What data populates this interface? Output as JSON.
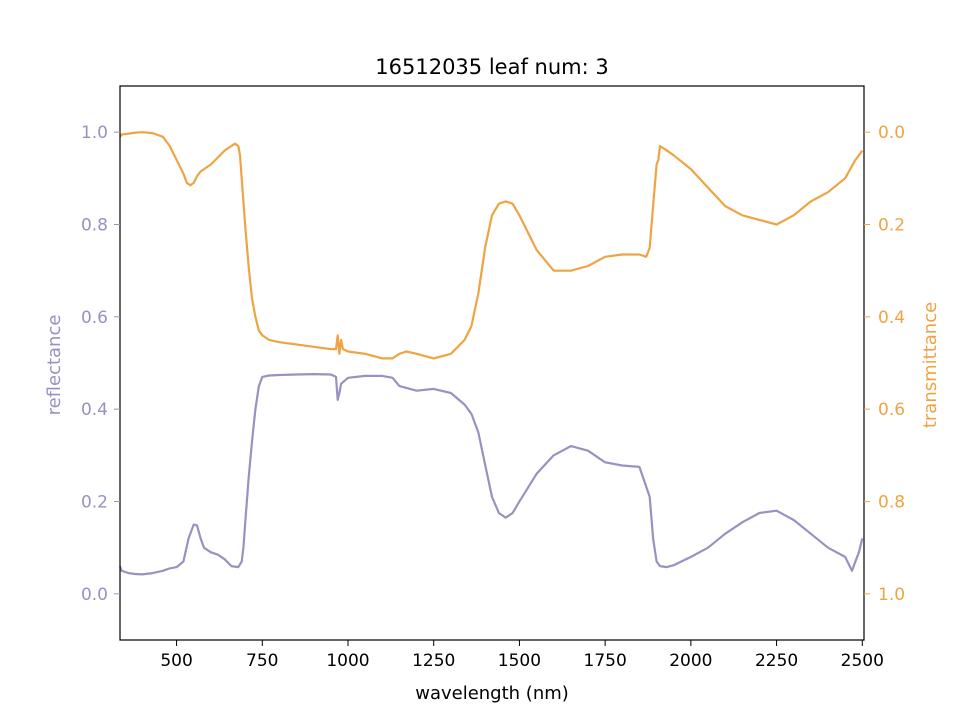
{
  "chart_data": {
    "type": "line",
    "title": "16512035 leaf num: 3",
    "xlabel": "wavelength (nm)",
    "ylabel_left": "reflectance",
    "ylabel_right": "transmittance",
    "xlim": [
      335,
      2505
    ],
    "ylim_left": [
      -0.1,
      1.1
    ],
    "ylim_right": [
      1.1,
      -0.1
    ],
    "x_ticks": [
      500,
      750,
      1000,
      1250,
      1500,
      1750,
      2000,
      2250,
      2500
    ],
    "y_ticks_left": [
      0.0,
      0.2,
      0.4,
      0.6,
      0.8,
      1.0
    ],
    "y_ticks_right": [
      0.0,
      0.2,
      0.4,
      0.6,
      0.8,
      1.0
    ],
    "x_tick_labels": [
      "500",
      "750",
      "1000",
      "1250",
      "1500",
      "1750",
      "2000",
      "2250",
      "2500"
    ],
    "y_tick_labels_left": [
      "0.0",
      "0.2",
      "0.4",
      "0.6",
      "0.8",
      "1.0"
    ],
    "y_tick_labels_right": [
      "0.0",
      "0.2",
      "0.4",
      "0.6",
      "0.8",
      "1.0"
    ],
    "grid": false,
    "colors": {
      "reflectance": "#9991c2",
      "transmittance": "#eea444",
      "axes": "#000000"
    },
    "series": [
      {
        "axis": "left",
        "color": "#9991c2",
        "x": [
          335,
          340,
          360,
          380,
          400,
          430,
          460,
          480,
          500,
          520,
          535,
          550,
          560,
          570,
          580,
          600,
          620,
          640,
          660,
          680,
          690,
          695,
          700,
          710,
          720,
          730,
          740,
          750,
          770,
          800,
          850,
          900,
          950,
          965,
          970,
          975,
          980,
          1000,
          1050,
          1100,
          1130,
          1150,
          1200,
          1250,
          1300,
          1340,
          1360,
          1380,
          1400,
          1420,
          1440,
          1460,
          1480,
          1500,
          1550,
          1600,
          1650,
          1700,
          1750,
          1800,
          1850,
          1880,
          1890,
          1900,
          1910,
          1930,
          1950,
          2000,
          2050,
          2100,
          2150,
          2200,
          2250,
          2300,
          2350,
          2400,
          2450,
          2470,
          2480,
          2490,
          2500
        ],
        "y": [
          0.06,
          0.05,
          0.045,
          0.043,
          0.042,
          0.045,
          0.05,
          0.055,
          0.058,
          0.07,
          0.12,
          0.15,
          0.148,
          0.12,
          0.1,
          0.09,
          0.085,
          0.075,
          0.06,
          0.058,
          0.07,
          0.1,
          0.15,
          0.25,
          0.33,
          0.4,
          0.45,
          0.47,
          0.473,
          0.474,
          0.475,
          0.476,
          0.475,
          0.47,
          0.42,
          0.435,
          0.455,
          0.468,
          0.472,
          0.472,
          0.468,
          0.45,
          0.44,
          0.444,
          0.435,
          0.41,
          0.39,
          0.35,
          0.28,
          0.21,
          0.175,
          0.165,
          0.175,
          0.2,
          0.26,
          0.3,
          0.32,
          0.31,
          0.285,
          0.278,
          0.275,
          0.21,
          0.12,
          0.07,
          0.06,
          0.058,
          0.062,
          0.08,
          0.1,
          0.13,
          0.155,
          0.175,
          0.18,
          0.16,
          0.13,
          0.1,
          0.08,
          0.05,
          0.07,
          0.09,
          0.12
        ]
      },
      {
        "axis": "right",
        "color": "#eea444",
        "x": [
          335,
          340,
          360,
          380,
          400,
          430,
          460,
          480,
          500,
          520,
          530,
          540,
          550,
          560,
          570,
          580,
          600,
          620,
          640,
          660,
          670,
          680,
          685,
          690,
          700,
          710,
          720,
          730,
          740,
          750,
          770,
          800,
          850,
          900,
          950,
          965,
          970,
          975,
          980,
          985,
          1000,
          1050,
          1100,
          1130,
          1150,
          1170,
          1200,
          1250,
          1300,
          1340,
          1360,
          1380,
          1400,
          1420,
          1440,
          1460,
          1480,
          1500,
          1550,
          1600,
          1650,
          1700,
          1750,
          1800,
          1850,
          1870,
          1880,
          1890,
          1900,
          1905,
          1910,
          1930,
          1950,
          2000,
          2050,
          2100,
          2150,
          2200,
          2250,
          2300,
          2350,
          2400,
          2450,
          2480,
          2490,
          2500
        ],
        "y": [
          0.01,
          0.005,
          0.003,
          0.001,
          0.0,
          0.002,
          0.01,
          0.03,
          0.06,
          0.09,
          0.11,
          0.115,
          0.11,
          0.095,
          0.085,
          0.08,
          0.07,
          0.055,
          0.04,
          0.03,
          0.025,
          0.03,
          0.05,
          0.1,
          0.2,
          0.29,
          0.36,
          0.4,
          0.43,
          0.44,
          0.45,
          0.455,
          0.46,
          0.465,
          0.47,
          0.47,
          0.44,
          0.48,
          0.45,
          0.47,
          0.475,
          0.48,
          0.49,
          0.49,
          0.48,
          0.475,
          0.48,
          0.49,
          0.48,
          0.45,
          0.42,
          0.35,
          0.25,
          0.18,
          0.155,
          0.15,
          0.155,
          0.18,
          0.255,
          0.3,
          0.3,
          0.29,
          0.27,
          0.265,
          0.265,
          0.27,
          0.25,
          0.16,
          0.07,
          0.06,
          0.03,
          0.04,
          0.05,
          0.08,
          0.12,
          0.16,
          0.18,
          0.19,
          0.2,
          0.18,
          0.15,
          0.13,
          0.1,
          0.06,
          0.05,
          0.04
        ]
      }
    ]
  }
}
